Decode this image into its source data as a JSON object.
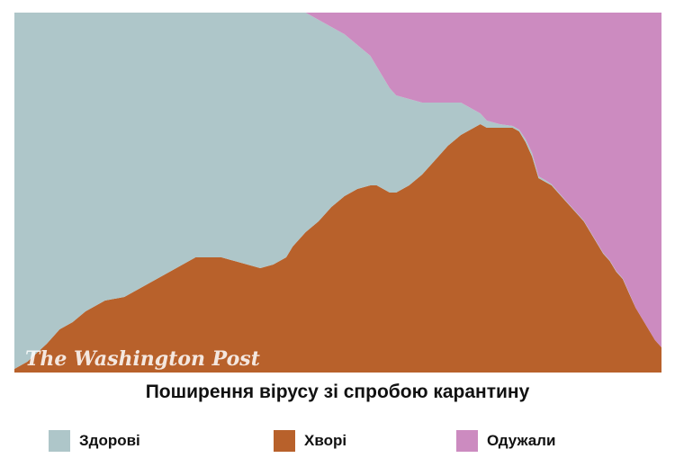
{
  "chart_data": {
    "type": "area",
    "stacked": "100%",
    "title": "Поширення вірусу зі спробою карантину",
    "x": [
      0,
      2,
      5,
      7,
      9,
      11,
      14,
      17,
      20,
      24,
      28,
      32,
      34,
      36,
      38,
      40,
      42,
      43,
      45,
      47,
      49,
      51,
      53,
      55,
      56,
      57,
      58,
      59,
      61,
      63,
      65,
      67,
      69,
      70,
      71,
      72,
      73,
      75,
      77,
      78,
      79,
      80,
      81,
      82,
      83,
      85,
      86,
      88,
      90,
      91,
      92,
      93,
      94,
      95,
      96,
      97,
      98,
      99,
      100
    ],
    "series": [
      {
        "name": "Здорові",
        "color": "#aec6c9",
        "values": [
          99,
          97,
          92,
          88,
          86,
          83,
          80,
          79,
          76,
          72,
          68,
          68,
          69,
          70,
          71,
          70,
          68,
          65,
          61,
          56,
          50,
          45,
          40,
          36,
          33,
          31,
          29,
          27,
          24,
          20,
          16,
          12,
          9,
          7,
          5,
          3,
          2,
          1,
          0.5,
          0.5,
          0.8,
          1,
          0.5,
          0.5,
          0.3,
          0.2,
          0.2,
          0.2,
          0.2,
          0.2,
          0.2,
          0.2,
          0.2,
          0.2,
          0,
          0,
          0,
          0,
          0
        ]
      },
      {
        "name": "Хворі",
        "color": "#b8612b",
        "values": [
          1,
          3,
          8,
          12,
          14,
          17,
          20,
          21,
          24,
          28,
          32,
          32,
          31,
          30,
          29,
          30,
          32,
          35,
          39,
          42,
          46,
          49,
          51,
          52,
          52,
          51,
          50,
          50,
          52,
          55,
          59,
          63,
          66,
          67,
          68,
          69,
          68,
          68,
          68,
          67,
          64,
          60,
          54,
          53,
          52,
          48,
          46,
          42,
          36,
          33,
          31,
          28,
          26,
          22,
          18,
          15,
          12,
          9,
          7
        ]
      },
      {
        "name": "Одужали",
        "color": "#cc8bc0",
        "values": [
          0,
          0,
          0,
          0,
          0,
          0,
          0,
          0,
          0,
          0,
          0,
          0,
          0,
          0,
          0,
          0,
          0,
          0,
          0,
          2,
          4,
          6,
          9,
          12,
          15,
          18,
          21,
          23,
          24,
          25,
          25,
          25,
          25,
          26,
          27,
          28,
          30,
          31,
          31.5,
          32.5,
          35.2,
          39,
          45.5,
          46.5,
          47.7,
          51.8,
          53.8,
          57.8,
          63.8,
          66.8,
          68.8,
          71.8,
          73.8,
          77.8,
          82,
          85,
          88,
          91,
          93
        ]
      }
    ],
    "legend": "bottom",
    "watermark": "The Washington Post",
    "grid": false
  }
}
